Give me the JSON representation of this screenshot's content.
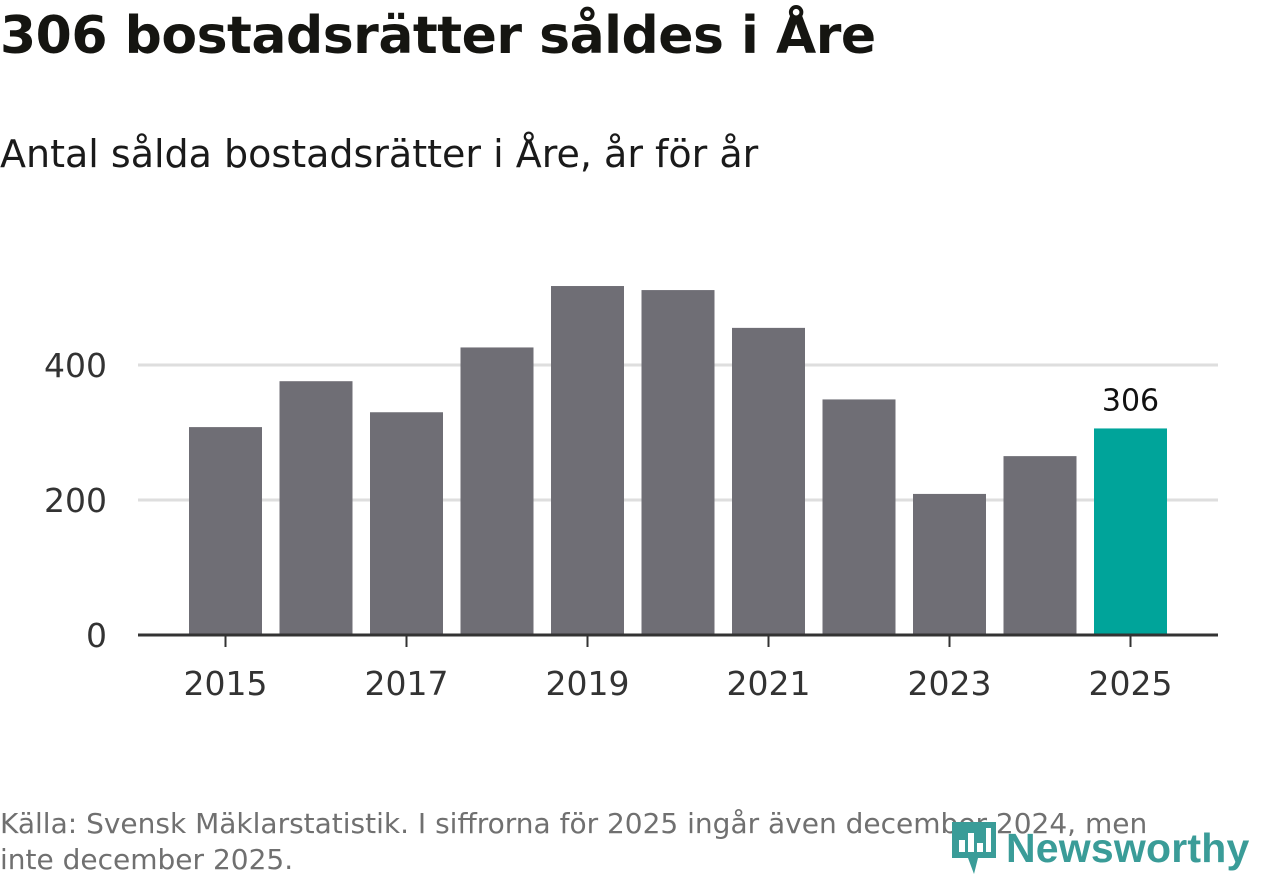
{
  "header": {
    "title": "306 bostadsrätter såldes i Åre",
    "subtitle": "Antal sålda bostadsrätter i Åre, år för år"
  },
  "chart_data": {
    "type": "bar",
    "title": "306 bostadsrätter såldes i Åre",
    "subtitle": "Antal sålda bostadsrätter i Åre, år för år",
    "categories": [
      "2015",
      "2016",
      "2017",
      "2018",
      "2019",
      "2020",
      "2021",
      "2022",
      "2023",
      "2024",
      "2025"
    ],
    "values": [
      308,
      376,
      330,
      426,
      517,
      511,
      455,
      349,
      209,
      265,
      306
    ],
    "ylim": [
      0,
      540
    ],
    "yticks": [
      0,
      200,
      400
    ],
    "xtick_labels": [
      "2015",
      "2017",
      "2019",
      "2021",
      "2023",
      "2025"
    ],
    "highlight_index": 10,
    "highlight_label": "306",
    "grid": true,
    "colors": {
      "bar": "#6f6e75",
      "highlight": "#00a49a",
      "grid": "#dedede",
      "axis": "#333333"
    }
  },
  "footer": {
    "source": "Källa: Svensk Mäklarstatistik. I siffrorna för 2025 ingår även december 2024, men inte december 2025.",
    "logo_text": "Newsworthy",
    "logo_color": "#3a9c98"
  }
}
